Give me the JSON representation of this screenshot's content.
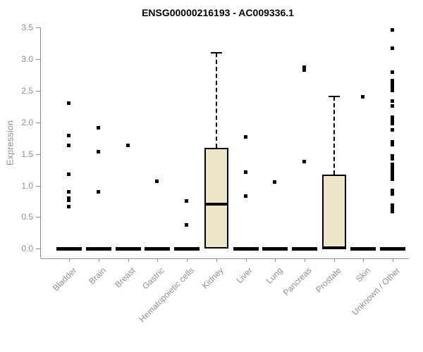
{
  "chart_data": {
    "type": "boxplot",
    "title": "ENSG00000216193 - AC009336.1",
    "ylabel": "Expression",
    "ylim": [
      0,
      3.5
    ],
    "yticks": [
      0.0,
      0.5,
      1.0,
      1.5,
      2.0,
      2.5,
      3.0,
      3.5
    ],
    "grid": false,
    "legend": "none",
    "categories": [
      "Bladder",
      "Brain",
      "Breast",
      "Gastric",
      "Hematopoietic cells",
      "Kidney",
      "Liver",
      "Lung",
      "Pancreas",
      "Prostate",
      "Skin",
      "Unknown / Other"
    ],
    "groups": [
      {
        "label": "Bladder",
        "zero_bar": true,
        "points": [
          2.3,
          1.79,
          1.63,
          1.17,
          0.9,
          0.79,
          0.76,
          0.66
        ]
      },
      {
        "label": "Brain",
        "zero_bar": true,
        "points": [
          1.91,
          1.53,
          0.89
        ]
      },
      {
        "label": "Breast",
        "zero_bar": true,
        "points": [
          1.63
        ]
      },
      {
        "label": "Gastric",
        "zero_bar": true,
        "points": [
          1.06
        ]
      },
      {
        "label": "Hematopoietic cells",
        "zero_bar": true,
        "points": [
          0.75,
          0.37
        ]
      },
      {
        "label": "Kidney",
        "zero_bar": false,
        "box": {
          "whisker_low": 0,
          "q1": 0,
          "median": 0.71,
          "q3": 1.6,
          "whisker_high": 3.1
        },
        "points": []
      },
      {
        "label": "Liver",
        "zero_bar": true,
        "points": [
          1.76,
          1.21,
          0.83
        ]
      },
      {
        "label": "Lung",
        "zero_bar": true,
        "points": [
          1.05
        ]
      },
      {
        "label": "Pancreas",
        "zero_bar": true,
        "points": [
          2.87,
          2.82,
          1.37
        ]
      },
      {
        "label": "Prostate",
        "zero_bar": false,
        "box": {
          "whisker_low": 0,
          "q1": 0,
          "median": 0.02,
          "q3": 1.17,
          "whisker_high": 2.41
        },
        "points": []
      },
      {
        "label": "Skin",
        "zero_bar": true,
        "points": [
          2.4
        ]
      },
      {
        "label": "Unknown / Other",
        "zero_bar": true,
        "points": [
          3.46,
          3.17,
          2.79,
          2.66,
          2.6,
          2.55,
          2.5,
          2.33,
          2.26,
          2.08,
          2.03,
          1.98,
          1.88,
          1.69,
          1.64,
          1.46,
          1.42,
          1.33,
          1.28,
          1.24,
          1.19,
          1.14,
          1.1,
          0.92,
          0.86,
          0.68,
          0.63,
          0.58
        ]
      }
    ],
    "colors": {
      "box_fill": "#EDE5CB",
      "box_border": "#000000",
      "point": "#000000",
      "axis": "#8C8C8C",
      "tick_label": "#8C9196",
      "title": "#000000"
    }
  }
}
